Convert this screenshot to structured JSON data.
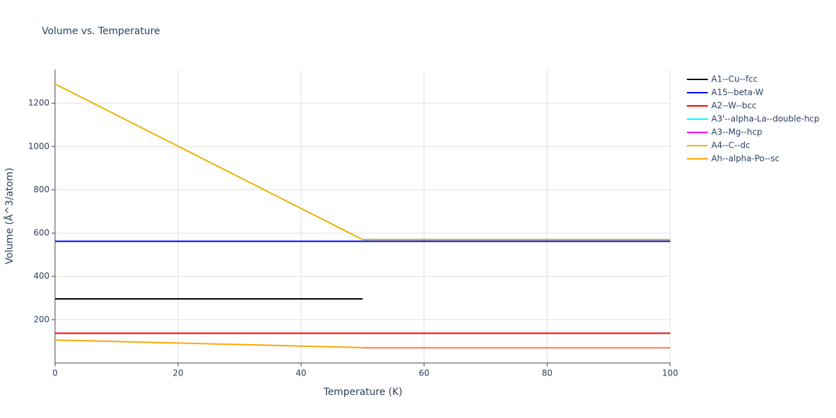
{
  "chart_data": {
    "type": "line",
    "title": "Volume vs. Temperature",
    "x_label": "Temperature (K)",
    "y_label": "Volume (Å^3/atom)",
    "x": [
      0,
      50,
      100
    ],
    "series": [
      {
        "name": "A1--Cu--fcc",
        "color": "#000000",
        "values": [
          296,
          296,
          null
        ]
      },
      {
        "name": "A15--beta-W",
        "color": "#0000ff",
        "values": [
          562,
          562,
          562
        ]
      },
      {
        "name": "A2--W--bcc",
        "color": "#ff0000",
        "values": [
          137,
          137,
          137
        ]
      },
      {
        "name": "A3'--alpha-La--double-hcp",
        "color": "#00ffff",
        "values": [
          null,
          570,
          570
        ]
      },
      {
        "name": "A3--Mg--hcp",
        "color": "#ff00ff",
        "values": [
          null,
          70,
          70
        ]
      },
      {
        "name": "A4--C--dc",
        "color": "#e6b400",
        "values": [
          1289,
          570,
          570
        ]
      },
      {
        "name": "Ah--alpha-Po--sc",
        "color": "#ffa500",
        "values": [
          106,
          71,
          71
        ]
      }
    ],
    "xlim": [
      0,
      100
    ],
    "xticks": [
      0,
      20,
      40,
      60,
      80,
      100
    ],
    "ylim": [
      0,
      1355
    ],
    "yticks": [
      200,
      400,
      600,
      800,
      1000,
      1200
    ],
    "grid": true,
    "legend": "right"
  }
}
